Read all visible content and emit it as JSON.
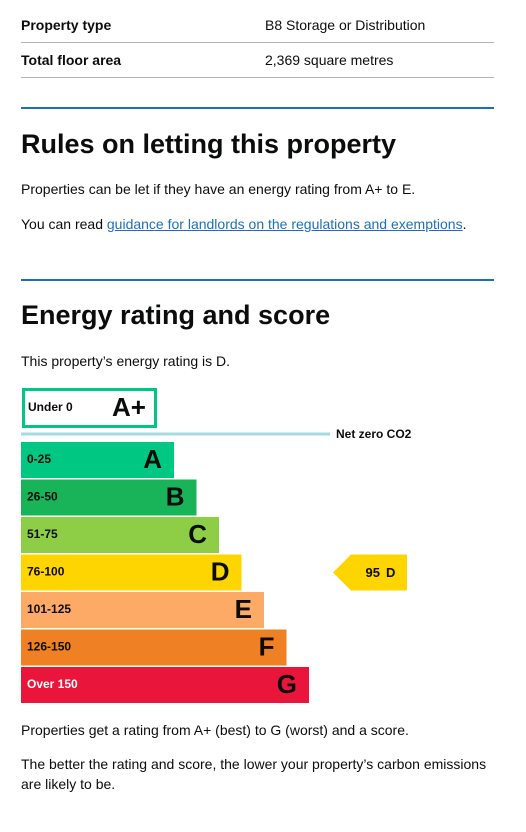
{
  "summary": {
    "rows": [
      [
        "Property type",
        "B8 Storage or Distribution"
      ],
      [
        "Total floor area",
        "2,369 square metres"
      ]
    ]
  },
  "letting": {
    "heading": "Rules on letting this property",
    "paragraph": "Properties can be let if they have an energy rating from A+ to E.",
    "read_intro": "You can read ",
    "link": "guidance for landlords on the regulations and exemptions",
    "read_end": "."
  },
  "energy": {
    "heading": "Energy rating and score",
    "intro": "This property’s energy rating is D.",
    "net_zero_band": {
      "range": "Under 0",
      "letter": "A+",
      "color": "#00c781"
    },
    "net_zero_label": "Net zero CO2",
    "bands": [
      {
        "range": "0-25",
        "letter": "A",
        "color": "#00c781"
      },
      {
        "range": "26-50",
        "letter": "B",
        "color": "#19b459"
      },
      {
        "range": "51-75",
        "letter": "C",
        "color": "#8dce46"
      },
      {
        "range": "76-100",
        "letter": "D",
        "color": "#ffd500"
      },
      {
        "range": "101-125",
        "letter": "E",
        "color": "#fcaa65"
      },
      {
        "range": "126-150",
        "letter": "F",
        "color": "#ef8023"
      },
      {
        "range": "Over 150",
        "letter": "G",
        "color": "#e9153b"
      }
    ],
    "current": {
      "score": 95,
      "letter": "D"
    },
    "notes": [
      "Properties get a rating from A+ (best) to G (worst) and a score.",
      "The better the rating and score, the lower your property’s carbon emissions are likely to be."
    ]
  }
}
